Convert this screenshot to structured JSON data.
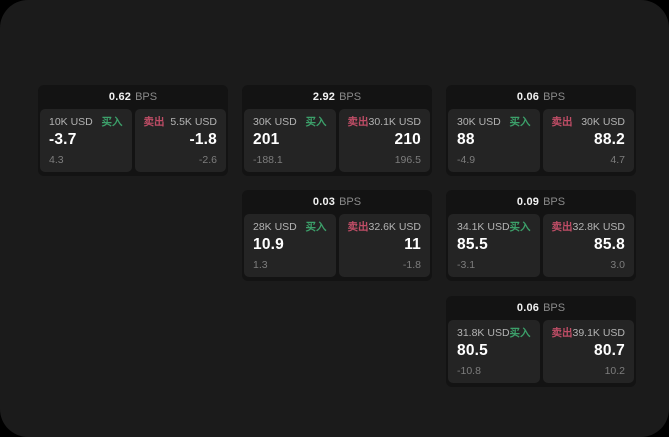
{
  "labels": {
    "bps_unit": "BPS",
    "buy": "买入",
    "sell": "卖出"
  },
  "colors": {
    "buy_green": "#3ca06a",
    "sell_red": "#bf4d66",
    "surface_bg": "#1b1b1b",
    "card_bg": "#131313",
    "tile_bg": "#242424",
    "outer_bg": "#000000"
  },
  "cards": [
    {
      "bps": "0.62",
      "buy": {
        "amount": "10K USD",
        "value": "-3.7",
        "sub": "4.3"
      },
      "sell": {
        "amount": "5.5K USD",
        "value": "-1.8",
        "sub": "-2.6"
      }
    },
    {
      "bps": "2.92",
      "buy": {
        "amount": "30K USD",
        "value": "201",
        "sub": "-188.1"
      },
      "sell": {
        "amount": "30.1K USD",
        "value": "210",
        "sub": "196.5"
      }
    },
    {
      "bps": "0.06",
      "buy": {
        "amount": "30K USD",
        "value": "88",
        "sub": "-4.9"
      },
      "sell": {
        "amount": "30K USD",
        "value": "88.2",
        "sub": "4.7"
      }
    },
    {
      "bps": "0.03",
      "buy": {
        "amount": "28K USD",
        "value": "10.9",
        "sub": "1.3"
      },
      "sell": {
        "amount": "32.6K USD",
        "value": "11",
        "sub": "-1.8"
      }
    },
    {
      "bps": "0.09",
      "buy": {
        "amount": "34.1K USD",
        "value": "85.5",
        "sub": "-3.1"
      },
      "sell": {
        "amount": "32.8K USD",
        "value": "85.8",
        "sub": "3.0"
      }
    },
    {
      "bps": "0.06",
      "buy": {
        "amount": "31.8K USD",
        "value": "80.5",
        "sub": "-10.8"
      },
      "sell": {
        "amount": "39.1K USD",
        "value": "80.7",
        "sub": "10.2"
      }
    }
  ]
}
